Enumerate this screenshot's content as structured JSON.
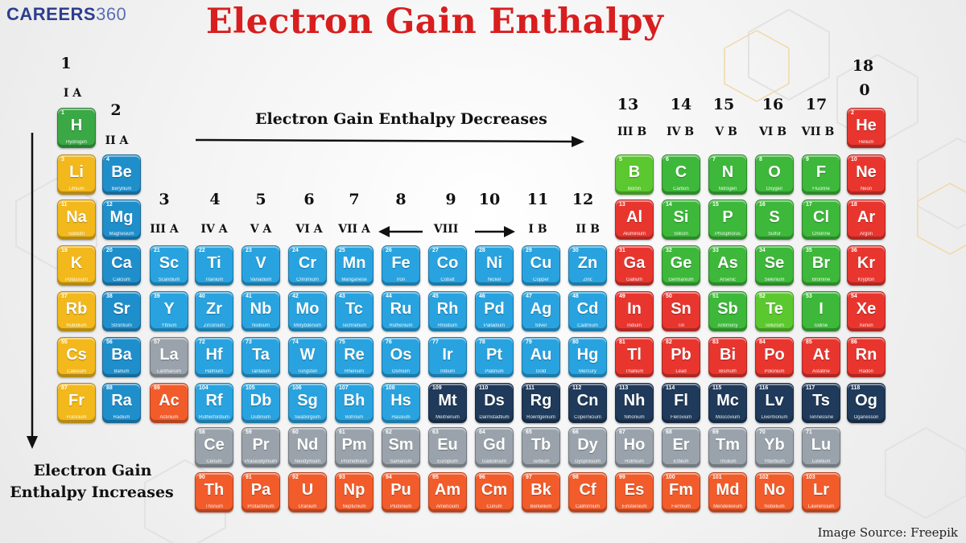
{
  "logo": {
    "text_bold": "CAREERS",
    "text_light": "360"
  },
  "title": "Electron Gain Enthalpy",
  "arrows": {
    "horizontal_label": "Electron Gain Enthalpy Decreases",
    "vertical_label_line1": "Electron Gain",
    "vertical_label_line2": "Enthalpy Increases"
  },
  "image_source": "Image Source:  Freepik",
  "group_labels": [
    {
      "num": "1",
      "sub": "I A"
    },
    {
      "num": "2",
      "sub": "II A"
    },
    {
      "num": "3",
      "sub": "III A"
    },
    {
      "num": "4",
      "sub": "IV A"
    },
    {
      "num": "5",
      "sub": "V A"
    },
    {
      "num": "6",
      "sub": "VI A"
    },
    {
      "num": "7",
      "sub": "VII A"
    },
    {
      "num": "8",
      "sub": ""
    },
    {
      "num": "9",
      "sub": "VIII"
    },
    {
      "num": "10",
      "sub": ""
    },
    {
      "num": "11",
      "sub": "I B"
    },
    {
      "num": "12",
      "sub": "II B"
    },
    {
      "num": "13",
      "sub": "III B"
    },
    {
      "num": "14",
      "sub": "IV B"
    },
    {
      "num": "15",
      "sub": "V B"
    },
    {
      "num": "16",
      "sub": "VI B"
    },
    {
      "num": "17",
      "sub": "VII B"
    },
    {
      "num": "18",
      "sub": "0"
    }
  ],
  "colors": {
    "alkali": "#f2b81c",
    "alkaline": "#1f8fcc",
    "transition": "#29a3df",
    "lanthanide": "#9aa3ab",
    "actinide": "#f25c2b",
    "dark": "#1f3a5a",
    "green": "#3db83a",
    "lightgreen": "#5cc830",
    "red": "#e8362f",
    "hydrogen": "#3aa845"
  },
  "elements": [
    {
      "n": 1,
      "s": "H",
      "name": "Hydrogen",
      "r": 1,
      "c": 1,
      "t": "hydrogen"
    },
    {
      "n": 2,
      "s": "He",
      "name": "Helium",
      "r": 1,
      "c": 18,
      "t": "red"
    },
    {
      "n": 3,
      "s": "Li",
      "name": "Lithium",
      "r": 2,
      "c": 1,
      "t": "alkali"
    },
    {
      "n": 4,
      "s": "Be",
      "name": "Beryllium",
      "r": 2,
      "c": 2,
      "t": "alkaline"
    },
    {
      "n": 5,
      "s": "B",
      "name": "Boron",
      "r": 2,
      "c": 13,
      "t": "lightgreen"
    },
    {
      "n": 6,
      "s": "C",
      "name": "Carbon",
      "r": 2,
      "c": 14,
      "t": "green"
    },
    {
      "n": 7,
      "s": "N",
      "name": "Nitrogen",
      "r": 2,
      "c": 15,
      "t": "green"
    },
    {
      "n": 8,
      "s": "O",
      "name": "Oxygen",
      "r": 2,
      "c": 16,
      "t": "green"
    },
    {
      "n": 9,
      "s": "F",
      "name": "Fluorine",
      "r": 2,
      "c": 17,
      "t": "green"
    },
    {
      "n": 10,
      "s": "Ne",
      "name": "Neon",
      "r": 2,
      "c": 18,
      "t": "red"
    },
    {
      "n": 11,
      "s": "Na",
      "name": "Sodium",
      "r": 3,
      "c": 1,
      "t": "alkali"
    },
    {
      "n": 12,
      "s": "Mg",
      "name": "Magnesium",
      "r": 3,
      "c": 2,
      "t": "alkaline"
    },
    {
      "n": 13,
      "s": "Al",
      "name": "Aluminium",
      "r": 3,
      "c": 13,
      "t": "red"
    },
    {
      "n": 14,
      "s": "Si",
      "name": "Silicon",
      "r": 3,
      "c": 14,
      "t": "green"
    },
    {
      "n": 15,
      "s": "P",
      "name": "Phosphorus",
      "r": 3,
      "c": 15,
      "t": "green"
    },
    {
      "n": 16,
      "s": "S",
      "name": "Sulfur",
      "r": 3,
      "c": 16,
      "t": "green"
    },
    {
      "n": 17,
      "s": "Cl",
      "name": "Chlorine",
      "r": 3,
      "c": 17,
      "t": "green"
    },
    {
      "n": 18,
      "s": "Ar",
      "name": "Argon",
      "r": 3,
      "c": 18,
      "t": "red"
    },
    {
      "n": 19,
      "s": "K",
      "name": "Potassium",
      "r": 4,
      "c": 1,
      "t": "alkali"
    },
    {
      "n": 20,
      "s": "Ca",
      "name": "Calcium",
      "r": 4,
      "c": 2,
      "t": "alkaline"
    },
    {
      "n": 21,
      "s": "Sc",
      "name": "Scandium",
      "r": 4,
      "c": 3,
      "t": "transition"
    },
    {
      "n": 22,
      "s": "Ti",
      "name": "Titanium",
      "r": 4,
      "c": 4,
      "t": "transition"
    },
    {
      "n": 23,
      "s": "V",
      "name": "Vanadium",
      "r": 4,
      "c": 5,
      "t": "transition"
    },
    {
      "n": 24,
      "s": "Cr",
      "name": "Chromium",
      "r": 4,
      "c": 6,
      "t": "transition"
    },
    {
      "n": 25,
      "s": "Mn",
      "name": "Manganese",
      "r": 4,
      "c": 7,
      "t": "transition"
    },
    {
      "n": 26,
      "s": "Fe",
      "name": "Iron",
      "r": 4,
      "c": 8,
      "t": "transition"
    },
    {
      "n": 27,
      "s": "Co",
      "name": "Cobalt",
      "r": 4,
      "c": 9,
      "t": "transition"
    },
    {
      "n": 28,
      "s": "Ni",
      "name": "Nickel",
      "r": 4,
      "c": 10,
      "t": "transition"
    },
    {
      "n": 29,
      "s": "Cu",
      "name": "Copper",
      "r": 4,
      "c": 11,
      "t": "transition"
    },
    {
      "n": 30,
      "s": "Zn",
      "name": "Zinc",
      "r": 4,
      "c": 12,
      "t": "transition"
    },
    {
      "n": 31,
      "s": "Ga",
      "name": "Gallium",
      "r": 4,
      "c": 13,
      "t": "red"
    },
    {
      "n": 32,
      "s": "Ge",
      "name": "Germanium",
      "r": 4,
      "c": 14,
      "t": "green"
    },
    {
      "n": 33,
      "s": "As",
      "name": "Arsenic",
      "r": 4,
      "c": 15,
      "t": "green"
    },
    {
      "n": 34,
      "s": "Se",
      "name": "Selenium",
      "r": 4,
      "c": 16,
      "t": "green"
    },
    {
      "n": 35,
      "s": "Br",
      "name": "Bromine",
      "r": 4,
      "c": 17,
      "t": "green"
    },
    {
      "n": 36,
      "s": "Kr",
      "name": "Krypton",
      "r": 4,
      "c": 18,
      "t": "red"
    },
    {
      "n": 37,
      "s": "Rb",
      "name": "Rubidium",
      "r": 5,
      "c": 1,
      "t": "alkali"
    },
    {
      "n": 38,
      "s": "Sr",
      "name": "Strontium",
      "r": 5,
      "c": 2,
      "t": "alkaline"
    },
    {
      "n": 39,
      "s": "Y",
      "name": "Yttrium",
      "r": 5,
      "c": 3,
      "t": "transition"
    },
    {
      "n": 40,
      "s": "Zr",
      "name": "Zirconium",
      "r": 5,
      "c": 4,
      "t": "transition"
    },
    {
      "n": 41,
      "s": "Nb",
      "name": "Niobium",
      "r": 5,
      "c": 5,
      "t": "transition"
    },
    {
      "n": 42,
      "s": "Mo",
      "name": "Molybdenum",
      "r": 5,
      "c": 6,
      "t": "transition"
    },
    {
      "n": 43,
      "s": "Tc",
      "name": "Technetium",
      "r": 5,
      "c": 7,
      "t": "transition"
    },
    {
      "n": 44,
      "s": "Ru",
      "name": "Ruthenium",
      "r": 5,
      "c": 8,
      "t": "transition"
    },
    {
      "n": 45,
      "s": "Rh",
      "name": "Rhodium",
      "r": 5,
      "c": 9,
      "t": "transition"
    },
    {
      "n": 46,
      "s": "Pd",
      "name": "Palladium",
      "r": 5,
      "c": 10,
      "t": "transition"
    },
    {
      "n": 47,
      "s": "Ag",
      "name": "Silver",
      "r": 5,
      "c": 11,
      "t": "transition"
    },
    {
      "n": 48,
      "s": "Cd",
      "name": "Cadmium",
      "r": 5,
      "c": 12,
      "t": "transition"
    },
    {
      "n": 49,
      "s": "In",
      "name": "Indium",
      "r": 5,
      "c": 13,
      "t": "red"
    },
    {
      "n": 50,
      "s": "Sn",
      "name": "Tin",
      "r": 5,
      "c": 14,
      "t": "red"
    },
    {
      "n": 51,
      "s": "Sb",
      "name": "Antimony",
      "r": 5,
      "c": 15,
      "t": "green"
    },
    {
      "n": 52,
      "s": "Te",
      "name": "Tellurium",
      "r": 5,
      "c": 16,
      "t": "lightgreen"
    },
    {
      "n": 53,
      "s": "I",
      "name": "Iodine",
      "r": 5,
      "c": 17,
      "t": "green"
    },
    {
      "n": 54,
      "s": "Xe",
      "name": "Xenon",
      "r": 5,
      "c": 18,
      "t": "red"
    },
    {
      "n": 55,
      "s": "Cs",
      "name": "Caesium",
      "r": 6,
      "c": 1,
      "t": "alkali"
    },
    {
      "n": 56,
      "s": "Ba",
      "name": "Barium",
      "r": 6,
      "c": 2,
      "t": "alkaline"
    },
    {
      "n": 57,
      "s": "La",
      "name": "Lanthanum",
      "r": 6,
      "c": 3,
      "t": "lanthanide"
    },
    {
      "n": 72,
      "s": "Hf",
      "name": "Hafnium",
      "r": 6,
      "c": 4,
      "t": "transition"
    },
    {
      "n": 73,
      "s": "Ta",
      "name": "Tantalum",
      "r": 6,
      "c": 5,
      "t": "transition"
    },
    {
      "n": 74,
      "s": "W",
      "name": "Tungsten",
      "r": 6,
      "c": 6,
      "t": "transition"
    },
    {
      "n": 75,
      "s": "Re",
      "name": "Rhenium",
      "r": 6,
      "c": 7,
      "t": "transition"
    },
    {
      "n": 76,
      "s": "Os",
      "name": "Osmium",
      "r": 6,
      "c": 8,
      "t": "transition"
    },
    {
      "n": 77,
      "s": "Ir",
      "name": "Iridium",
      "r": 6,
      "c": 9,
      "t": "transition"
    },
    {
      "n": 78,
      "s": "Pt",
      "name": "Platinum",
      "r": 6,
      "c": 10,
      "t": "transition"
    },
    {
      "n": 79,
      "s": "Au",
      "name": "Gold",
      "r": 6,
      "c": 11,
      "t": "transition"
    },
    {
      "n": 80,
      "s": "Hg",
      "name": "Mercury",
      "r": 6,
      "c": 12,
      "t": "transition"
    },
    {
      "n": 81,
      "s": "Tl",
      "name": "Thallium",
      "r": 6,
      "c": 13,
      "t": "red"
    },
    {
      "n": 82,
      "s": "Pb",
      "name": "Lead",
      "r": 6,
      "c": 14,
      "t": "red"
    },
    {
      "n": 83,
      "s": "Bi",
      "name": "Bismuth",
      "r": 6,
      "c": 15,
      "t": "red"
    },
    {
      "n": 84,
      "s": "Po",
      "name": "Polonium",
      "r": 6,
      "c": 16,
      "t": "red"
    },
    {
      "n": 85,
      "s": "At",
      "name": "Astatine",
      "r": 6,
      "c": 17,
      "t": "red"
    },
    {
      "n": 86,
      "s": "Rn",
      "name": "Radon",
      "r": 6,
      "c": 18,
      "t": "red"
    },
    {
      "n": 87,
      "s": "Fr",
      "name": "Francium",
      "r": 7,
      "c": 1,
      "t": "alkali"
    },
    {
      "n": 88,
      "s": "Ra",
      "name": "Radium",
      "r": 7,
      "c": 2,
      "t": "alkaline"
    },
    {
      "n": 89,
      "s": "Ac",
      "name": "Actinium",
      "r": 7,
      "c": 3,
      "t": "actinide"
    },
    {
      "n": 104,
      "s": "Rf",
      "name": "Rutherfordium",
      "r": 7,
      "c": 4,
      "t": "transition"
    },
    {
      "n": 105,
      "s": "Db",
      "name": "Dubnium",
      "r": 7,
      "c": 5,
      "t": "transition"
    },
    {
      "n": 106,
      "s": "Sg",
      "name": "Seaborgium",
      "r": 7,
      "c": 6,
      "t": "transition"
    },
    {
      "n": 107,
      "s": "Bh",
      "name": "Bohrium",
      "r": 7,
      "c": 7,
      "t": "transition"
    },
    {
      "n": 108,
      "s": "Hs",
      "name": "Hassium",
      "r": 7,
      "c": 8,
      "t": "transition"
    },
    {
      "n": 109,
      "s": "Mt",
      "name": "Meitnerium",
      "r": 7,
      "c": 9,
      "t": "dark"
    },
    {
      "n": 110,
      "s": "Ds",
      "name": "Darmstadtium",
      "r": 7,
      "c": 10,
      "t": "dark"
    },
    {
      "n": 111,
      "s": "Rg",
      "name": "Roentgenium",
      "r": 7,
      "c": 11,
      "t": "dark"
    },
    {
      "n": 112,
      "s": "Cn",
      "name": "Copernicium",
      "r": 7,
      "c": 12,
      "t": "dark"
    },
    {
      "n": 113,
      "s": "Nh",
      "name": "Nihonium",
      "r": 7,
      "c": 13,
      "t": "dark"
    },
    {
      "n": 114,
      "s": "Fl",
      "name": "Flerovium",
      "r": 7,
      "c": 14,
      "t": "dark"
    },
    {
      "n": 115,
      "s": "Mc",
      "name": "Moscovium",
      "r": 7,
      "c": 15,
      "t": "dark"
    },
    {
      "n": 116,
      "s": "Lv",
      "name": "Livermorium",
      "r": 7,
      "c": 16,
      "t": "dark"
    },
    {
      "n": 117,
      "s": "Ts",
      "name": "Tennessine",
      "r": 7,
      "c": 17,
      "t": "dark"
    },
    {
      "n": 118,
      "s": "Og",
      "name": "Oganesson",
      "r": 7,
      "c": 18,
      "t": "dark"
    },
    {
      "n": 58,
      "s": "Ce",
      "name": "Cerium",
      "r": 8,
      "c": 4,
      "t": "lanthanide"
    },
    {
      "n": 59,
      "s": "Pr",
      "name": "Praseodymium",
      "r": 8,
      "c": 5,
      "t": "lanthanide"
    },
    {
      "n": 60,
      "s": "Nd",
      "name": "Neodymium",
      "r": 8,
      "c": 6,
      "t": "lanthanide"
    },
    {
      "n": 61,
      "s": "Pm",
      "name": "Promethium",
      "r": 8,
      "c": 7,
      "t": "lanthanide"
    },
    {
      "n": 62,
      "s": "Sm",
      "name": "Samarium",
      "r": 8,
      "c": 8,
      "t": "lanthanide"
    },
    {
      "n": 63,
      "s": "Eu",
      "name": "Europium",
      "r": 8,
      "c": 9,
      "t": "lanthanide"
    },
    {
      "n": 64,
      "s": "Gd",
      "name": "Gadolinium",
      "r": 8,
      "c": 10,
      "t": "lanthanide"
    },
    {
      "n": 65,
      "s": "Tb",
      "name": "Terbium",
      "r": 8,
      "c": 11,
      "t": "lanthanide"
    },
    {
      "n": 66,
      "s": "Dy",
      "name": "Dysprosium",
      "r": 8,
      "c": 12,
      "t": "lanthanide"
    },
    {
      "n": 67,
      "s": "Ho",
      "name": "Holmium",
      "r": 8,
      "c": 13,
      "t": "lanthanide"
    },
    {
      "n": 68,
      "s": "Er",
      "name": "Erbium",
      "r": 8,
      "c": 14,
      "t": "lanthanide"
    },
    {
      "n": 69,
      "s": "Tm",
      "name": "Thulium",
      "r": 8,
      "c": 15,
      "t": "lanthanide"
    },
    {
      "n": 70,
      "s": "Yb",
      "name": "Ytterbium",
      "r": 8,
      "c": 16,
      "t": "lanthanide"
    },
    {
      "n": 71,
      "s": "Lu",
      "name": "Lutetium",
      "r": 8,
      "c": 17,
      "t": "lanthanide"
    },
    {
      "n": 90,
      "s": "Th",
      "name": "Thorium",
      "r": 9,
      "c": 4,
      "t": "actinide"
    },
    {
      "n": 91,
      "s": "Pa",
      "name": "Protactinium",
      "r": 9,
      "c": 5,
      "t": "actinide"
    },
    {
      "n": 92,
      "s": "U",
      "name": "Uranium",
      "r": 9,
      "c": 6,
      "t": "actinide"
    },
    {
      "n": 93,
      "s": "Np",
      "name": "Neptunium",
      "r": 9,
      "c": 7,
      "t": "actinide"
    },
    {
      "n": 94,
      "s": "Pu",
      "name": "Plutonium",
      "r": 9,
      "c": 8,
      "t": "actinide"
    },
    {
      "n": 95,
      "s": "Am",
      "name": "Americium",
      "r": 9,
      "c": 9,
      "t": "actinide"
    },
    {
      "n": 96,
      "s": "Cm",
      "name": "Curium",
      "r": 9,
      "c": 10,
      "t": "actinide"
    },
    {
      "n": 97,
      "s": "Bk",
      "name": "Berkelium",
      "r": 9,
      "c": 11,
      "t": "actinide"
    },
    {
      "n": 98,
      "s": "Cf",
      "name": "Californium",
      "r": 9,
      "c": 12,
      "t": "actinide"
    },
    {
      "n": 99,
      "s": "Es",
      "name": "Einsteinium",
      "r": 9,
      "c": 13,
      "t": "actinide"
    },
    {
      "n": 100,
      "s": "Fm",
      "name": "Fermium",
      "r": 9,
      "c": 14,
      "t": "actinide"
    },
    {
      "n": 101,
      "s": "Md",
      "name": "Mendelevium",
      "r": 9,
      "c": 15,
      "t": "actinide"
    },
    {
      "n": 102,
      "s": "No",
      "name": "Nobelium",
      "r": 9,
      "c": 16,
      "t": "actinide"
    },
    {
      "n": 103,
      "s": "Lr",
      "name": "Lawrencium",
      "r": 9,
      "c": 17,
      "t": "actinide"
    }
  ]
}
